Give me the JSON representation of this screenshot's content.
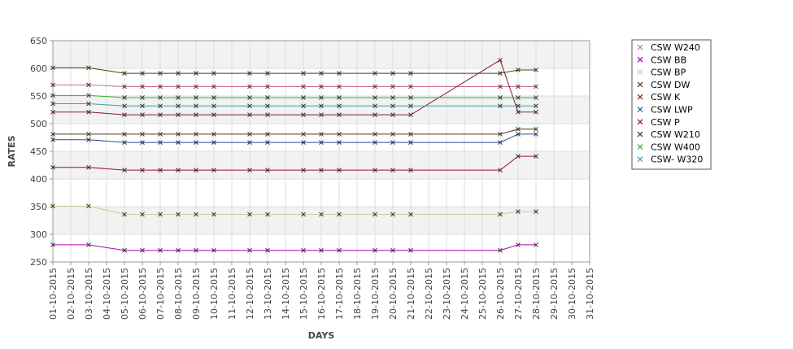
{
  "chart_data": {
    "type": "line",
    "title": "",
    "xlabel": "DAYS",
    "ylabel": "RATES",
    "ylim": [
      250,
      650
    ],
    "yticks": [
      "250",
      "300",
      "350",
      "400",
      "450",
      "500",
      "550",
      "600",
      "650"
    ],
    "x_ticks": [
      "01-10-2015",
      "02-10-2015",
      "03-10-2015",
      "04-10-2015",
      "05-10-2015",
      "06-10-2015",
      "07-10-2015",
      "08-10-2015",
      "09-10-2015",
      "10-10-2015",
      "11-10-2015",
      "12-10-2015",
      "13-10-2015",
      "14-10-2015",
      "15-10-2015",
      "16-10-2015",
      "17-10-2015",
      "18-10-2015",
      "19-10-2015",
      "20-10-2015",
      "21-10-2015",
      "22-10-2015",
      "23-10-2015",
      "24-10-2015",
      "25-10-2015",
      "26-10-2015",
      "27-10-2015",
      "28-10-2015",
      "29-10-2015",
      "30-10-2015",
      "31-10-2015"
    ],
    "x": [
      "01-10-2015",
      "03-10-2015",
      "05-10-2015",
      "06-10-2015",
      "07-10-2015",
      "08-10-2015",
      "09-10-2015",
      "10-10-2015",
      "12-10-2015",
      "13-10-2015",
      "15-10-2015",
      "16-10-2015",
      "17-10-2015",
      "19-10-2015",
      "20-10-2015",
      "21-10-2015",
      "26-10-2015",
      "27-10-2015",
      "28-10-2015"
    ],
    "grid": true,
    "legend_position": "right",
    "series": [
      {
        "name": "CSW  W240",
        "color": "#cc6699",
        "values": [
          570,
          570,
          567,
          567,
          567,
          567,
          567,
          567,
          567,
          567,
          567,
          567,
          567,
          567,
          567,
          567,
          567,
          567,
          567
        ]
      },
      {
        "name": "CSW BB",
        "color": "#b000b0",
        "values": [
          281,
          281,
          271,
          271,
          271,
          271,
          271,
          271,
          271,
          271,
          271,
          271,
          271,
          271,
          271,
          271,
          271,
          281,
          281
        ]
      },
      {
        "name": "CSW BP",
        "color": "#b8d890",
        "values": [
          351,
          351,
          336,
          336,
          336,
          336,
          336,
          336,
          336,
          336,
          336,
          336,
          336,
          336,
          336,
          336,
          336,
          341,
          341
        ]
      },
      {
        "name": "CSW DW",
        "color": "#5a3a00",
        "values": [
          601,
          601,
          591,
          591,
          591,
          591,
          591,
          591,
          591,
          591,
          591,
          591,
          591,
          591,
          591,
          591,
          591,
          597,
          597
        ]
      },
      {
        "name": "CSW K",
        "color": "#8a1a3a",
        "values": [
          521,
          521,
          516,
          516,
          516,
          516,
          516,
          516,
          516,
          516,
          516,
          516,
          516,
          516,
          516,
          516,
          615,
          521,
          521
        ]
      },
      {
        "name": "CSW LWP",
        "color": "#2a4aa0",
        "values": [
          471,
          471,
          466,
          466,
          466,
          466,
          466,
          466,
          466,
          466,
          466,
          466,
          466,
          466,
          466,
          466,
          466,
          481,
          481
        ]
      },
      {
        "name": "CSW P",
        "color": "#a01020",
        "values": [
          421,
          421,
          416,
          416,
          416,
          416,
          416,
          416,
          416,
          416,
          416,
          416,
          416,
          416,
          416,
          416,
          416,
          441,
          441
        ]
      },
      {
        "name": "CSW W210",
        "color": "#4a3a10",
        "values": [
          481,
          481,
          481,
          481,
          481,
          481,
          481,
          481,
          481,
          481,
          481,
          481,
          481,
          481,
          481,
          481,
          481,
          490,
          490
        ]
      },
      {
        "name": "CSW W400",
        "color": "#30b030",
        "values": [
          551,
          551,
          547,
          547,
          547,
          547,
          547,
          547,
          547,
          547,
          547,
          547,
          547,
          547,
          547,
          547,
          547,
          547,
          547
        ]
      },
      {
        "name": "CSW- W320",
        "color": "#40a090",
        "values": [
          536,
          536,
          532,
          532,
          532,
          532,
          532,
          532,
          532,
          532,
          532,
          532,
          532,
          532,
          532,
          532,
          532,
          532,
          532
        ]
      }
    ]
  }
}
